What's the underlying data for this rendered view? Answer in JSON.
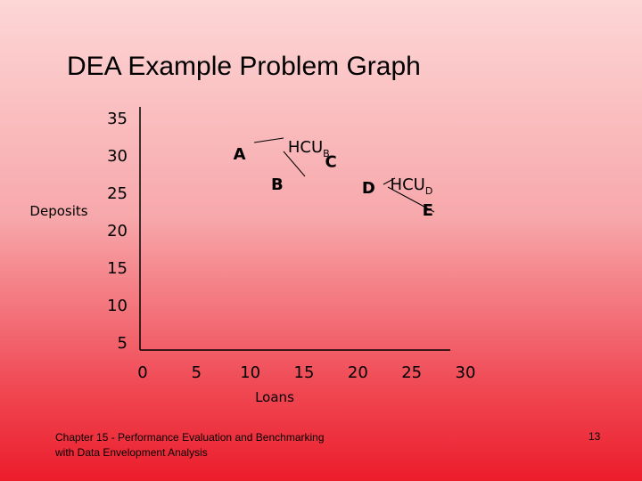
{
  "slide": {
    "title": "DEA Example Problem Graph",
    "footer": "Chapter 15 - Performance Evaluation and Benchmarking with Data Envelopment Analysis",
    "page_number": "13"
  },
  "chart_data": {
    "type": "scatter",
    "title": "DEA Example Problem Graph",
    "xlabel": "Loans",
    "ylabel": "Deposits",
    "xticks": [
      0,
      5,
      10,
      15,
      20,
      25,
      30
    ],
    "yticks": [
      5,
      10,
      15,
      20,
      25,
      30,
      35
    ],
    "xlim": [
      0,
      30
    ],
    "ylim": [
      5,
      35
    ],
    "grid": false,
    "points": [
      {
        "label": "A",
        "x": 9,
        "y": 29.5
      },
      {
        "label": "B",
        "x": 12.5,
        "y": 25.5
      },
      {
        "label": "C",
        "x": 17.5,
        "y": 28.5
      },
      {
        "label": "D",
        "x": 21,
        "y": 25
      },
      {
        "label": "E",
        "x": 26.5,
        "y": 22
      }
    ],
    "frontier_labels": [
      {
        "base": "HCU",
        "sub": "B",
        "x": 13.5,
        "y": 30.5,
        "line_to": {
          "x": 12.5,
          "y": 26.5
        }
      },
      {
        "base": "HCU",
        "sub": "D",
        "x": 23,
        "y": 25.5,
        "line_start": {
          "x": 21.5,
          "y": 25
        },
        "line_to": {
          "x": 25.5,
          "y": 22.5
        }
      }
    ],
    "axis_color": "#000000",
    "line_color": "#000000"
  }
}
